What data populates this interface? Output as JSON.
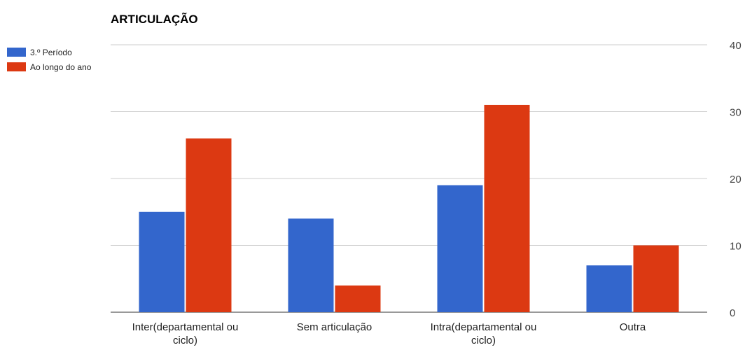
{
  "chart_data": {
    "type": "bar",
    "title": "ARTICULAÇÃO",
    "categories": [
      [
        "Inter(departamental ou",
        "ciclo)"
      ],
      [
        "Sem articulação"
      ],
      [
        "Intra(departamental ou",
        "ciclo)"
      ],
      [
        "Outra"
      ]
    ],
    "series": [
      {
        "name": "3.º Período",
        "color": "#3366cc",
        "values": [
          15,
          14,
          19,
          7
        ]
      },
      {
        "name": "Ao longo do ano",
        "color": "#dc3912",
        "values": [
          26,
          4,
          31,
          10
        ]
      }
    ],
    "ylim": [
      0,
      40
    ],
    "yticks": [
      0,
      10,
      20,
      30,
      40
    ],
    "y_axis_side": "right",
    "grid": true,
    "legend_position": "left"
  }
}
